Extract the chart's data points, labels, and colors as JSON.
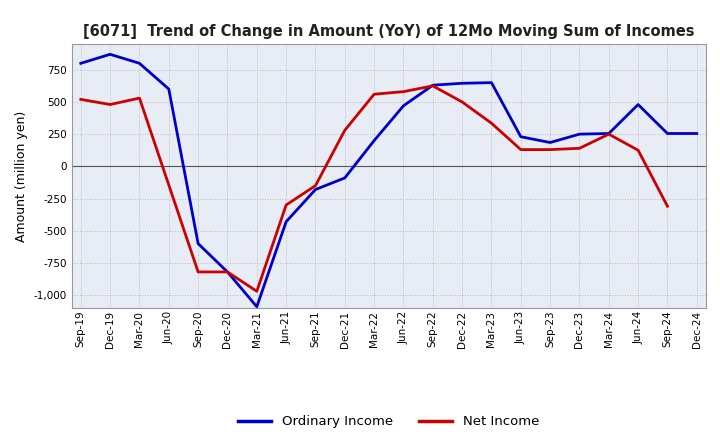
{
  "title": "[6071]  Trend of Change in Amount (YoY) of 12Mo Moving Sum of Incomes",
  "ylabel": "Amount (million yen)",
  "x_labels": [
    "Sep-19",
    "Dec-19",
    "Mar-20",
    "Jun-20",
    "Sep-20",
    "Dec-20",
    "Mar-21",
    "Jun-21",
    "Sep-21",
    "Dec-21",
    "Mar-22",
    "Jun-22",
    "Sep-22",
    "Dec-22",
    "Mar-23",
    "Jun-23",
    "Sep-23",
    "Dec-23",
    "Mar-24",
    "Jun-24",
    "Sep-24",
    "Dec-24"
  ],
  "ordinary_income": [
    800,
    870,
    800,
    600,
    -600,
    -820,
    -1090,
    -430,
    -180,
    -90,
    200,
    470,
    630,
    645,
    650,
    230,
    185,
    250,
    255,
    480,
    255,
    255
  ],
  "net_income": [
    520,
    480,
    530,
    null,
    -820,
    -820,
    -970,
    -300,
    -150,
    280,
    560,
    580,
    625,
    500,
    335,
    130,
    130,
    140,
    250,
    125,
    -310,
    null
  ],
  "ordinary_income_color": "#0000cc",
  "net_income_color": "#cc0000",
  "ylim": [
    -1100,
    950
  ],
  "yticks": [
    -1000,
    -750,
    -500,
    -250,
    0,
    250,
    500,
    750
  ],
  "background_color": "#ffffff",
  "legend_labels": [
    "Ordinary Income",
    "Net Income"
  ]
}
